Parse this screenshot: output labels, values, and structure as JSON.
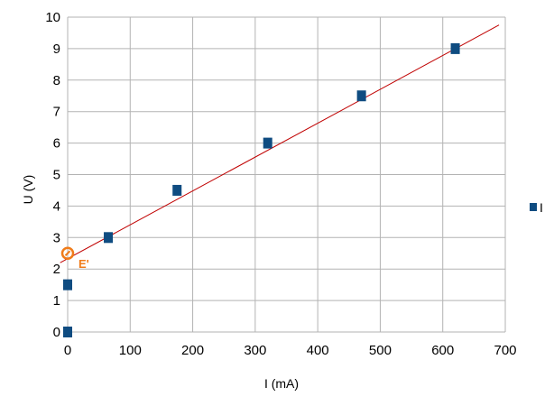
{
  "chart_data": {
    "type": "scatter",
    "xlabel": "I (mA)",
    "ylabel": "U (V)",
    "xlim": [
      0,
      700
    ],
    "ylim": [
      0,
      10
    ],
    "x_ticks": [
      0,
      100,
      200,
      300,
      400,
      500,
      600,
      700
    ],
    "y_ticks": [
      0,
      1,
      2,
      3,
      4,
      5,
      6,
      7,
      8,
      9,
      10
    ],
    "grid": true,
    "legend_position": "right",
    "series": [
      {
        "name": "I",
        "color": "#0f4c81",
        "marker": "square",
        "points": [
          {
            "x": 0,
            "y": 0
          },
          {
            "x": 0,
            "y": 1.5
          },
          {
            "x": 65,
            "y": 3.0
          },
          {
            "x": 175,
            "y": 4.5
          },
          {
            "x": 320,
            "y": 6.0
          },
          {
            "x": 470,
            "y": 7.5
          },
          {
            "x": 620,
            "y": 9.0
          }
        ]
      }
    ],
    "trendline": {
      "color": "#c00000",
      "from": {
        "x": -12,
        "y": 2.2
      },
      "to": {
        "x": 690,
        "y": 9.75
      }
    },
    "annotations": [
      {
        "label": "E'",
        "x": 0,
        "y": 2.5,
        "color": "#f07c1a",
        "marker": "circle"
      }
    ]
  }
}
